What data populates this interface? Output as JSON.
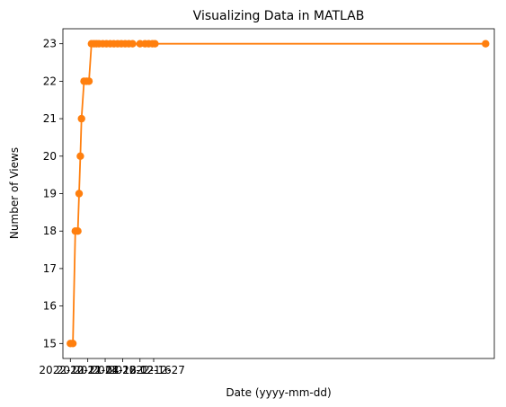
{
  "chart_data": {
    "type": "line",
    "title": "Visualizing Data in MATLAB",
    "xlabel": "Date (yyyy-mm-dd)",
    "ylabel": "Number of Views",
    "x_is_date": true,
    "xlim": [
      "2022-10-15",
      "2023-09-27"
    ],
    "ylim": [
      14.6,
      23.4
    ],
    "yticks": [
      15,
      16,
      17,
      18,
      19,
      20,
      21,
      22,
      23
    ],
    "xticks": [
      "2022-10-21",
      "2022-11-04",
      "2022-11-18",
      "2022-12-02",
      "2022-12-16",
      "2022-12-27"
    ],
    "grid": false,
    "series": [
      {
        "color": "#ff7f0e",
        "x": [
          "2022-10-21",
          "2022-10-23",
          "2022-10-25",
          "2022-10-27",
          "2022-10-28",
          "2022-10-29",
          "2022-10-30",
          "2022-11-01",
          "2022-11-03",
          "2022-11-05",
          "2022-11-07",
          "2022-11-09",
          "2022-11-11",
          "2022-11-13",
          "2022-11-16",
          "2022-11-19",
          "2022-11-22",
          "2022-11-25",
          "2022-11-28",
          "2022-12-01",
          "2022-12-04",
          "2022-12-07",
          "2022-12-10",
          "2022-12-16",
          "2022-12-20",
          "2022-12-23",
          "2022-12-26",
          "2022-12-28",
          "2023-09-20"
        ],
        "values": [
          15,
          15,
          18,
          18,
          19,
          20,
          21,
          22,
          22,
          22,
          23,
          23,
          23,
          23,
          23,
          23,
          23,
          23,
          23,
          23,
          23,
          23,
          23,
          23,
          23,
          23,
          23,
          23,
          23
        ]
      }
    ]
  }
}
